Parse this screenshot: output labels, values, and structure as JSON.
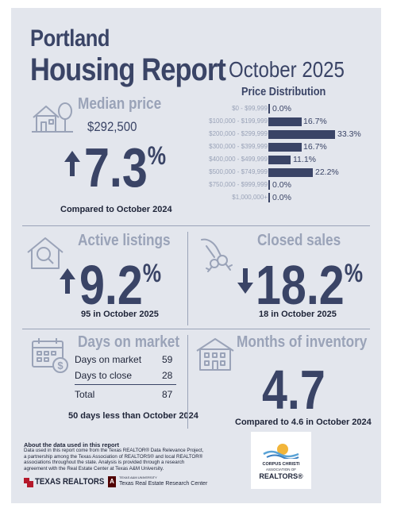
{
  "header": {
    "city": "Portland",
    "title": "Housing Report",
    "period": "October 2025"
  },
  "median_price": {
    "label": "Median price",
    "value": "$292,500",
    "change": "7.3",
    "unit": "%",
    "direction": "up",
    "note": "Compared to October 2024"
  },
  "price_distribution": {
    "title": "Price Distribution",
    "rows": [
      {
        "range": "$0 - $99,999",
        "value": "0.0%"
      },
      {
        "range": "$100,000 - $199,999",
        "value": "16.7%"
      },
      {
        "range": "$200,000 - $299,999",
        "value": "33.3%"
      },
      {
        "range": "$300,000 - $399,999",
        "value": "16.7%"
      },
      {
        "range": "$400,000 - $499,999",
        "value": "11.1%"
      },
      {
        "range": "$500,000 - $749,999",
        "value": "22.2%"
      },
      {
        "range": "$750,000 - $999,999",
        "value": "0.0%"
      },
      {
        "range": "$1,000,000+",
        "value": "0.0%"
      }
    ]
  },
  "active_listings": {
    "label": "Active listings",
    "change": "9.2",
    "unit": "%",
    "direction": "up",
    "note": "95 in October 2025"
  },
  "closed_sales": {
    "label": "Closed sales",
    "change": "18.2",
    "unit": "%",
    "direction": "down",
    "note": "18 in October 2025"
  },
  "days_on_market": {
    "label": "Days on market",
    "rows": [
      {
        "label": "Days on market",
        "value": "59"
      },
      {
        "label": "Days to close",
        "value": "28"
      }
    ],
    "total_label": "Total",
    "total_value": "87",
    "note": "50 days less than October 2024"
  },
  "months_inventory": {
    "label": "Months of inventory",
    "value": "4.7",
    "note": "Compared to 4.6 in October 2024"
  },
  "footer": {
    "about_title": "About the data used in this report",
    "about_text": "Data used in this report come from the Texas REALTOR® Data Relevance Project, a partnership among the Texas Association of REALTORS® and local REALTOR® associations throughout the state. Analysis is provided through a research agreement with the Real Estate Center at Texas A&M University.",
    "texas_realtors": "TEXAS REALTORS",
    "research_center": "Texas Real Estate Research Center",
    "research_center_small": "TEXAS A&M UNIVERSITY",
    "corpus_logo_line1": "CORPUS CHRISTI",
    "corpus_logo_line2": "ASSOCIATION OF",
    "corpus_logo_line3": "REALTORS®"
  },
  "colors": {
    "navy": "#3a4466",
    "grey": "#9aa3b8",
    "background": "#e3e6ed"
  }
}
